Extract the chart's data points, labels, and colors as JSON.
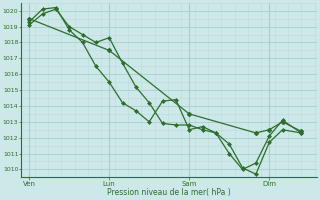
{
  "background_color": "#cce8e8",
  "grid_color_major": "#aacccc",
  "grid_color_minor": "#bcd8d8",
  "line_color": "#2d6e2d",
  "xlabel": "Pression niveau de la mer( hPa )",
  "ylim": [
    1009.5,
    1020.5
  ],
  "yticks": [
    1010,
    1011,
    1012,
    1013,
    1014,
    1015,
    1016,
    1017,
    1018,
    1019,
    1020
  ],
  "xtick_labels": [
    "Ven",
    "Lun",
    "Sam",
    "Dim"
  ],
  "xtick_positions": [
    0,
    3,
    6,
    9
  ],
  "xlim": [
    -0.3,
    10.8
  ],
  "series1_x": [
    0,
    0.5,
    1.0,
    1.5,
    2.0,
    2.5,
    3.0,
    3.5,
    4.0,
    4.5,
    5.0,
    5.5,
    6.0,
    6.5,
    7.0,
    7.5,
    8.0,
    8.5,
    9.0,
    9.5,
    10.2
  ],
  "series1_y": [
    1019.1,
    1019.8,
    1020.1,
    1019.0,
    1018.5,
    1018.0,
    1018.3,
    1016.7,
    1015.2,
    1014.2,
    1012.9,
    1012.8,
    1012.8,
    1012.5,
    1012.3,
    1011.6,
    1010.1,
    1009.7,
    1011.7,
    1012.5,
    1012.3
  ],
  "series2_x": [
    0,
    0.5,
    1.0,
    1.5,
    2.0,
    2.5,
    3.0,
    3.5,
    4.0,
    4.5,
    5.0,
    5.5,
    6.0,
    6.5,
    7.0,
    7.5,
    8.0,
    8.5,
    9.0,
    9.5,
    10.2
  ],
  "series2_y": [
    1019.3,
    1020.1,
    1020.2,
    1018.8,
    1018.0,
    1016.5,
    1015.5,
    1014.2,
    1013.7,
    1013.0,
    1014.3,
    1014.4,
    1012.5,
    1012.7,
    1012.3,
    1011.0,
    1010.0,
    1010.4,
    1012.1,
    1013.1,
    1012.3
  ],
  "series3_x": [
    0,
    3.0,
    6.0,
    8.5,
    9.0,
    9.5,
    10.2
  ],
  "series3_y": [
    1019.5,
    1017.5,
    1013.5,
    1012.3,
    1012.5,
    1013.0,
    1012.4
  ]
}
